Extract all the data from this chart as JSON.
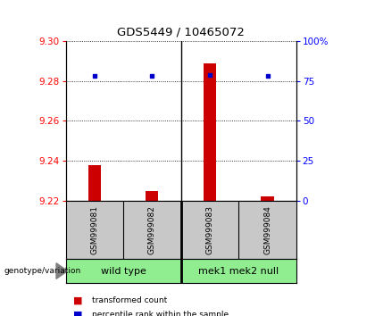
{
  "title": "GDS5449 / 10465072",
  "samples": [
    "GSM999081",
    "GSM999082",
    "GSM999083",
    "GSM999084"
  ],
  "group_labels": [
    "wild type",
    "mek1 mek2 null"
  ],
  "transformed_counts": [
    9.238,
    9.225,
    9.289,
    9.222
  ],
  "percentile_ranks": [
    78,
    78,
    79,
    78
  ],
  "ylim_left": [
    9.22,
    9.3
  ],
  "ylim_right": [
    0,
    100
  ],
  "yticks_left": [
    9.22,
    9.24,
    9.26,
    9.28,
    9.3
  ],
  "yticks_right": [
    0,
    25,
    50,
    75,
    100
  ],
  "ytick_labels_right": [
    "0",
    "25",
    "50",
    "75",
    "100%"
  ],
  "bar_color": "#CC0000",
  "dot_color": "#0000CC",
  "gray_color": "#C8C8C8",
  "green_color": "#90EE90",
  "legend_bar_label": "transformed count",
  "legend_dot_label": "percentile rank within the sample",
  "genotype_label": "genotype/variation"
}
